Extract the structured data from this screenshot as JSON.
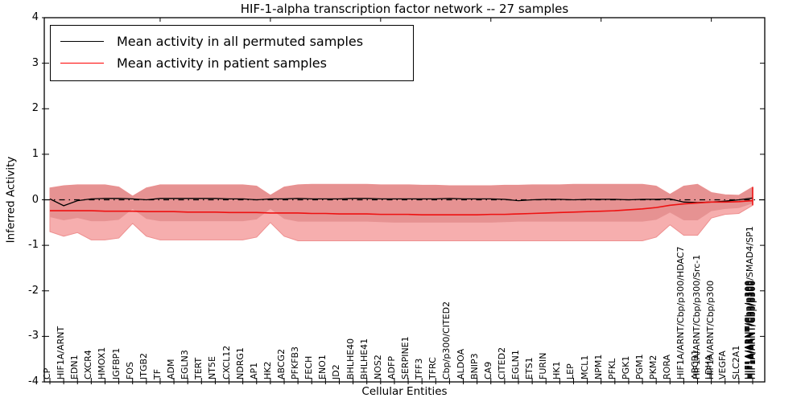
{
  "title": "HIF-1-alpha transcription factor network -- 27 samples",
  "legend": {
    "items": [
      {
        "label": "Mean activity in all permuted samples",
        "color": "#000000"
      },
      {
        "label": "Mean activity in patient samples",
        "color": "#ff0000"
      }
    ]
  },
  "axes": {
    "ylabel": "Inferred Activity",
    "xlabel": "Cellular Entities",
    "yticks": [
      "4",
      "3",
      "2",
      "1",
      "0",
      "-1",
      "-2",
      "-3",
      "-4"
    ],
    "ylim": [
      -4,
      4
    ],
    "grid": false
  },
  "colors": {
    "band_outer": "#f6aeae",
    "band_inner": "#e69292",
    "band_edge": "#ee8f8f",
    "permuted_line": "#000000",
    "patient_line": "#ee1111",
    "zero_line": "#000000"
  },
  "chart_data": {
    "type": "line",
    "title": "HIF-1-alpha transcription factor network -- 27 samples",
    "xlabel": "Cellular Entities",
    "ylabel": "Inferred Activity",
    "ylim": [
      -4,
      4
    ],
    "legend_position": "upper left",
    "n_columns": 52,
    "x_tick_labels": [
      {
        "t": "CP",
        "c": 0
      },
      {
        "t": "HIF1A/ARNT",
        "c": 1
      },
      {
        "t": "EDN1",
        "c": 2
      },
      {
        "t": "CXCR4",
        "c": 3
      },
      {
        "t": "HMOX1",
        "c": 4
      },
      {
        "t": "IGFBP1",
        "c": 5
      },
      {
        "t": "FOS",
        "c": 6
      },
      {
        "t": "ITGB2",
        "c": 7
      },
      {
        "t": "TF",
        "c": 8
      },
      {
        "t": "ADM",
        "c": 9
      },
      {
        "t": "EGLN3",
        "c": 10
      },
      {
        "t": "TERT",
        "c": 11
      },
      {
        "t": "NT5E",
        "c": 12
      },
      {
        "t": "CXCL12",
        "c": 13
      },
      {
        "t": "NDRG1",
        "c": 14
      },
      {
        "t": "AP1",
        "c": 15
      },
      {
        "t": "HK2",
        "c": 16
      },
      {
        "t": "ABCG2",
        "c": 17
      },
      {
        "t": "PFKFB3",
        "c": 18
      },
      {
        "t": "FECH",
        "c": 19
      },
      {
        "t": "ENO1",
        "c": 20
      },
      {
        "t": "ID2",
        "c": 21
      },
      {
        "t": "BHLHE40",
        "c": 22
      },
      {
        "t": "BHLHE41",
        "c": 23
      },
      {
        "t": "NOS2",
        "c": 24
      },
      {
        "t": "ADFP",
        "c": 25
      },
      {
        "t": "SERPINE1",
        "c": 26
      },
      {
        "t": "TFF3",
        "c": 27
      },
      {
        "t": "TFRC",
        "c": 28
      },
      {
        "t": "Cbp/p300/CITED2",
        "c": 29
      },
      {
        "t": "ALDOA",
        "c": 30
      },
      {
        "t": "BNIP3",
        "c": 31
      },
      {
        "t": "CA9",
        "c": 32
      },
      {
        "t": "CITED2",
        "c": 33
      },
      {
        "t": "EGLN1",
        "c": 34
      },
      {
        "t": "ETS1",
        "c": 35
      },
      {
        "t": "FURIN",
        "c": 36
      },
      {
        "t": "HK1",
        "c": 37
      },
      {
        "t": "LEP",
        "c": 38
      },
      {
        "t": "MCL1",
        "c": 39
      },
      {
        "t": "NPM1",
        "c": 40
      },
      {
        "t": "PFKL",
        "c": 41
      },
      {
        "t": "PGK1",
        "c": 42
      },
      {
        "t": "PGM1",
        "c": 43
      },
      {
        "t": "PKM2",
        "c": 44
      },
      {
        "t": "RORA",
        "c": 45
      },
      {
        "t": "HIF1A/ARNT/Cbp/p300/HDAC7",
        "c": 46
      },
      {
        "t": "ABCB1",
        "c": 47
      },
      {
        "t": "HIF1A/ARNT/Cbp/p300/Src-1",
        "c": 47
      },
      {
        "t": "LDHA",
        "c": 48
      },
      {
        "t": "HIF1A/ARNT/Cbp/p300",
        "c": 48
      },
      {
        "t": "VEGFA",
        "c": 49
      },
      {
        "t": "SLC2A1",
        "c": 50
      },
      {
        "t": "HIF1A/ARNT/Cbp/p300/SMAD4/SP1",
        "c": 51
      },
      {
        "t": "HIF1A/ARNT/Cbp/p300",
        "c": 51
      },
      {
        "t": "HIF1A/ARNT/Cbp/p300",
        "c": 51
      },
      {
        "t": "HIF1A/ARNT/Cbp/p300",
        "c": 51
      },
      {
        "t": "HIF1A/ARNT/Cbp/p300",
        "c": 51
      },
      {
        "t": "HIF1A/ARNT/Cbp/p300",
        "c": 51
      }
    ],
    "overlap_cluster_note_visible_top_text": "SMAD4/SP1",
    "series": [
      {
        "name": "Mean activity in all permuted samples",
        "color": "#000000",
        "values": [
          0.02,
          -0.13,
          -0.02,
          0.02,
          0.03,
          0.03,
          0.02,
          0.0,
          0.03,
          0.03,
          0.03,
          0.03,
          0.03,
          0.02,
          0.02,
          0.0,
          0.02,
          0.02,
          0.03,
          0.02,
          0.02,
          0.02,
          0.03,
          0.03,
          0.02,
          0.02,
          0.02,
          0.02,
          0.02,
          0.03,
          0.02,
          0.02,
          0.02,
          0.01,
          -0.02,
          0.0,
          0.01,
          0.01,
          0.0,
          0.01,
          0.01,
          0.01,
          0.0,
          0.01,
          0.01,
          0.02,
          -0.05,
          -0.06,
          -0.05,
          -0.03,
          0.0,
          0.04
        ]
      },
      {
        "name": "Mean activity in patient samples",
        "color": "#ee1111",
        "values": [
          -0.24,
          -0.24,
          -0.24,
          -0.24,
          -0.25,
          -0.25,
          -0.25,
          -0.26,
          -0.26,
          -0.26,
          -0.27,
          -0.27,
          -0.27,
          -0.28,
          -0.28,
          -0.28,
          -0.29,
          -0.29,
          -0.29,
          -0.3,
          -0.3,
          -0.31,
          -0.31,
          -0.31,
          -0.32,
          -0.32,
          -0.32,
          -0.33,
          -0.33,
          -0.33,
          -0.33,
          -0.33,
          -0.32,
          -0.32,
          -0.31,
          -0.3,
          -0.29,
          -0.28,
          -0.27,
          -0.26,
          -0.25,
          -0.24,
          -0.22,
          -0.2,
          -0.17,
          -0.12,
          -0.09,
          -0.07,
          -0.05,
          -0.05,
          -0.04,
          -0.02
        ]
      }
    ],
    "bands": {
      "outer_top": [
        0.26,
        0.31,
        0.33,
        0.33,
        0.33,
        0.28,
        0.08,
        0.26,
        0.33,
        0.33,
        0.33,
        0.33,
        0.33,
        0.33,
        0.33,
        0.3,
        0.1,
        0.28,
        0.33,
        0.34,
        0.34,
        0.34,
        0.34,
        0.34,
        0.33,
        0.33,
        0.33,
        0.32,
        0.32,
        0.31,
        0.31,
        0.31,
        0.31,
        0.32,
        0.32,
        0.33,
        0.33,
        0.33,
        0.34,
        0.34,
        0.34,
        0.34,
        0.34,
        0.34,
        0.3,
        0.12,
        0.3,
        0.34,
        0.16,
        0.11,
        0.1,
        0.28
      ],
      "outer_bottom": [
        -0.7,
        -0.8,
        -0.72,
        -0.88,
        -0.88,
        -0.84,
        -0.52,
        -0.8,
        -0.88,
        -0.88,
        -0.88,
        -0.88,
        -0.88,
        -0.88,
        -0.88,
        -0.82,
        -0.5,
        -0.8,
        -0.9,
        -0.9,
        -0.9,
        -0.9,
        -0.9,
        -0.9,
        -0.9,
        -0.9,
        -0.9,
        -0.9,
        -0.9,
        -0.9,
        -0.9,
        -0.9,
        -0.9,
        -0.9,
        -0.9,
        -0.9,
        -0.9,
        -0.9,
        -0.9,
        -0.9,
        -0.9,
        -0.9,
        -0.9,
        -0.9,
        -0.82,
        -0.55,
        -0.78,
        -0.78,
        -0.4,
        -0.32,
        -0.3,
        -0.12
      ],
      "inner_bottom": [
        -0.38,
        -0.45,
        -0.4,
        -0.47,
        -0.47,
        -0.44,
        -0.2,
        -0.42,
        -0.47,
        -0.47,
        -0.47,
        -0.47,
        -0.47,
        -0.47,
        -0.47,
        -0.43,
        -0.2,
        -0.42,
        -0.48,
        -0.48,
        -0.48,
        -0.48,
        -0.48,
        -0.48,
        -0.49,
        -0.5,
        -0.5,
        -0.5,
        -0.5,
        -0.5,
        -0.5,
        -0.5,
        -0.5,
        -0.49,
        -0.48,
        -0.48,
        -0.48,
        -0.48,
        -0.48,
        -0.48,
        -0.48,
        -0.48,
        -0.48,
        -0.48,
        -0.44,
        -0.28,
        -0.45,
        -0.45,
        -0.25,
        -0.2,
        -0.18,
        -0.08
      ]
    },
    "end_spike": {
      "x_col": 51,
      "top": 0.28,
      "bottom": -0.12,
      "color": "#ee1111"
    },
    "zero_line": {
      "y": 0,
      "style": "dash-dot"
    }
  }
}
